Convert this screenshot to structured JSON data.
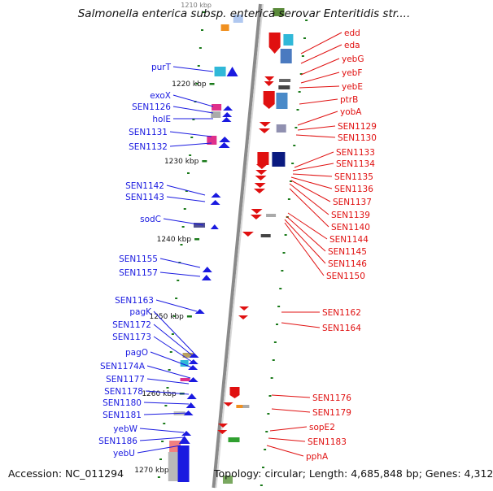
{
  "title": "Salmonella enterica subsp. enterica serovar Enteritidis str....",
  "footer": {
    "accession": "Accession: NC_011294",
    "summary": "Topology: circular; Length: 4,685,848 bp; Genes: 4,312"
  },
  "colors": {
    "left_label": "#1a1ae0",
    "right_label": "#e01010",
    "tick": "#1a7a1a",
    "axis": "#8a8a8a"
  },
  "scale": {
    "top_partial": "1210 kbp",
    "ticks": [
      "1220 kbp",
      "1230 kbp",
      "1240 kbp",
      "1250 kbp",
      "1260 kbp",
      "1270 kbp"
    ]
  },
  "left_labels": [
    "purT",
    "exoX",
    "SEN1126",
    "holE",
    "SEN1131",
    "SEN1132",
    "SEN1142",
    "SEN1143",
    "sodC",
    "SEN1155",
    "SEN1157",
    "SEN1163",
    "pagK",
    "SEN1172",
    "SEN1173",
    "pagO",
    "SEN1174A",
    "SEN1177",
    "SEN1178",
    "SEN1180",
    "SEN1181",
    "yebW",
    "SEN1186",
    "yebU"
  ],
  "right_labels": [
    "edd",
    "eda",
    "yebG",
    "yebF",
    "yebE",
    "ptrB",
    "yobA",
    "SEN1129",
    "SEN1130",
    "SEN1133",
    "SEN1134",
    "SEN1135",
    "SEN1136",
    "SEN1137",
    "SEN1139",
    "SEN1140",
    "SEN1144",
    "SEN1145",
    "SEN1146",
    "SEN1150",
    "SEN1162",
    "SEN1164",
    "SEN1176",
    "SEN1179",
    "sopE2",
    "SEN1183",
    "pphA"
  ]
}
